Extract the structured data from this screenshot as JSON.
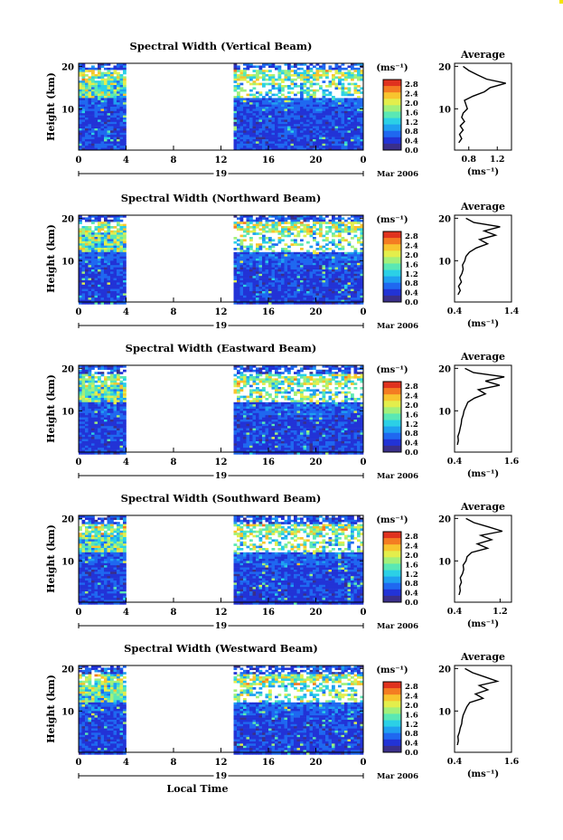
{
  "colors": {
    "frame": "#000000",
    "empty": "#ffffff",
    "corner_mark": "#f5e400",
    "scale": [
      "#3a2f8a",
      "#2233d6",
      "#1f68f0",
      "#1fa0f0",
      "#2bd0e6",
      "#5ae8b4",
      "#a2f07a",
      "#e3ee4c",
      "#f8c42e",
      "#f47c22",
      "#e0321e"
    ]
  },
  "chart_data": [
    {
      "type": "heatmap",
      "title": "Spectral Width (Vertical Beam)",
      "xlabel": "",
      "ylabel": "Height (km)",
      "x_ticks": [
        "0",
        "4",
        "8",
        "12",
        "16",
        "20",
        "0"
      ],
      "y_ticks": [
        "20",
        "10"
      ],
      "date_marker": "19",
      "month_label": "Mar 2006",
      "colorbar": {
        "unit": "(ms⁻¹)",
        "ticks": [
          "2.8",
          "2.4",
          "2.0",
          "1.6",
          "1.2",
          "0.8",
          "0.4",
          "0.0"
        ],
        "range": [
          0.0,
          3.0
        ]
      },
      "data_gap_hours": [
        4,
        13
      ],
      "profile": {
        "title": "Average",
        "xticks": [
          "0.8",
          "1.2"
        ],
        "xunit": "(ms⁻¹)",
        "yticks": [
          "20",
          "10"
        ],
        "xlim": [
          0.6,
          1.4
        ],
        "heights": [
          2,
          3,
          4,
          5,
          6,
          7,
          8,
          9,
          10,
          11,
          12,
          13,
          14,
          15,
          16,
          17,
          18,
          19,
          20
        ],
        "values": [
          0.66,
          0.7,
          0.67,
          0.72,
          0.68,
          0.74,
          0.7,
          0.72,
          0.78,
          0.76,
          0.74,
          0.86,
          1.02,
          1.1,
          1.32,
          1.05,
          0.92,
          0.8,
          0.72
        ]
      }
    },
    {
      "type": "heatmap",
      "title": "Spectral Width (Northward Beam)",
      "xlabel": "",
      "ylabel": "Height (km)",
      "x_ticks": [
        "0",
        "4",
        "8",
        "12",
        "16",
        "20",
        "0"
      ],
      "y_ticks": [
        "20",
        "10"
      ],
      "date_marker": "19",
      "month_label": "Mar 2006",
      "colorbar": {
        "unit": "(ms⁻¹)",
        "ticks": [
          "2.8",
          "2.4",
          "2.0",
          "1.6",
          "1.2",
          "0.8",
          "0.4",
          "0.0"
        ],
        "range": [
          0.0,
          3.0
        ]
      },
      "data_gap_hours": [
        4,
        13
      ],
      "profile": {
        "title": "Average",
        "xticks": [
          "0.4",
          "1.4"
        ],
        "xunit": "(ms⁻¹)",
        "yticks": [
          "20",
          "10"
        ],
        "xlim": [
          0.4,
          1.4
        ],
        "heights": [
          2,
          3,
          4,
          5,
          6,
          7,
          8,
          9,
          10,
          11,
          12,
          13,
          14,
          15,
          16,
          17,
          18,
          19,
          20
        ],
        "values": [
          0.46,
          0.5,
          0.47,
          0.52,
          0.49,
          0.53,
          0.55,
          0.54,
          0.58,
          0.6,
          0.66,
          0.78,
          0.98,
          0.84,
          1.12,
          0.92,
          1.2,
          0.74,
          0.6
        ]
      }
    },
    {
      "type": "heatmap",
      "title": "Spectral Width (Eastward Beam)",
      "xlabel": "",
      "ylabel": "Height (km)",
      "x_ticks": [
        "0",
        "4",
        "8",
        "12",
        "16",
        "20",
        "0"
      ],
      "y_ticks": [
        "20",
        "10"
      ],
      "date_marker": "19",
      "month_label": "Mar 2006",
      "colorbar": {
        "unit": "(ms⁻¹)",
        "ticks": [
          "2.8",
          "2.4",
          "2.0",
          "1.6",
          "1.2",
          "0.8",
          "0.4",
          "0.0"
        ],
        "range": [
          0.0,
          3.0
        ]
      },
      "data_gap_hours": [
        4,
        13
      ],
      "profile": {
        "title": "Average",
        "xticks": [
          "0.4",
          "1.6"
        ],
        "xunit": "(ms⁻¹)",
        "yticks": [
          "20",
          "10"
        ],
        "xlim": [
          0.4,
          1.6
        ],
        "heights": [
          2,
          3,
          4,
          5,
          6,
          7,
          8,
          9,
          10,
          11,
          12,
          13,
          14,
          15,
          16,
          17,
          18,
          19,
          20
        ],
        "values": [
          0.46,
          0.48,
          0.47,
          0.5,
          0.52,
          0.54,
          0.55,
          0.58,
          0.6,
          0.64,
          0.68,
          0.82,
          1.05,
          0.9,
          1.35,
          1.05,
          1.45,
          0.8,
          0.62
        ]
      }
    },
    {
      "type": "heatmap",
      "title": "Spectral Width (Southward Beam)",
      "xlabel": "",
      "ylabel": "Height (km)",
      "x_ticks": [
        "0",
        "4",
        "8",
        "12",
        "16",
        "20",
        "0"
      ],
      "y_ticks": [
        "20",
        "10"
      ],
      "date_marker": "19",
      "month_label": "Mar 2006",
      "colorbar": {
        "unit": "(ms⁻¹)",
        "ticks": [
          "2.8",
          "2.4",
          "2.0",
          "1.6",
          "1.2",
          "0.8",
          "0.4",
          "0.0"
        ],
        "range": [
          0.0,
          3.0
        ]
      },
      "data_gap_hours": [
        4,
        13
      ],
      "profile": {
        "title": "Average",
        "xticks": [
          "0.4",
          "1.2"
        ],
        "xunit": "(ms⁻¹)",
        "yticks": [
          "20",
          "10"
        ],
        "xlim": [
          0.4,
          1.4
        ],
        "heights": [
          2,
          3,
          4,
          5,
          6,
          7,
          8,
          9,
          10,
          11,
          12,
          13,
          14,
          15,
          16,
          17,
          18,
          19,
          20
        ],
        "values": [
          0.48,
          0.5,
          0.49,
          0.52,
          0.5,
          0.54,
          0.56,
          0.55,
          0.6,
          0.62,
          0.7,
          0.98,
          0.8,
          1.05,
          0.86,
          1.24,
          1.0,
          0.74,
          0.6
        ]
      }
    },
    {
      "type": "heatmap",
      "title": "Spectral Width (Westward Beam)",
      "xlabel": "Local Time",
      "ylabel": "Height (km)",
      "x_ticks": [
        "0",
        "4",
        "8",
        "12",
        "16",
        "20",
        "0"
      ],
      "y_ticks": [
        "20",
        "10"
      ],
      "date_marker": "19",
      "month_label": "Mar 2006",
      "colorbar": {
        "unit": "(ms⁻¹)",
        "ticks": [
          "2.8",
          "2.4",
          "2.0",
          "1.6",
          "1.2",
          "0.8",
          "0.4",
          "0.0"
        ],
        "range": [
          0.0,
          3.0
        ]
      },
      "data_gap_hours": [
        4,
        13
      ],
      "profile": {
        "title": "Average",
        "xticks": [
          "0.4",
          "1.6"
        ],
        "xunit": "(ms⁻¹)",
        "yticks": [
          "20",
          "10"
        ],
        "xlim": [
          0.4,
          1.6
        ],
        "heights": [
          2,
          3,
          4,
          5,
          6,
          7,
          8,
          9,
          10,
          11,
          12,
          13,
          14,
          15,
          16,
          17,
          18,
          19,
          20
        ],
        "values": [
          0.46,
          0.48,
          0.47,
          0.5,
          0.52,
          0.55,
          0.56,
          0.58,
          0.62,
          0.66,
          0.72,
          1.0,
          0.84,
          1.1,
          0.92,
          1.3,
          1.05,
          0.78,
          0.62
        ]
      }
    }
  ]
}
